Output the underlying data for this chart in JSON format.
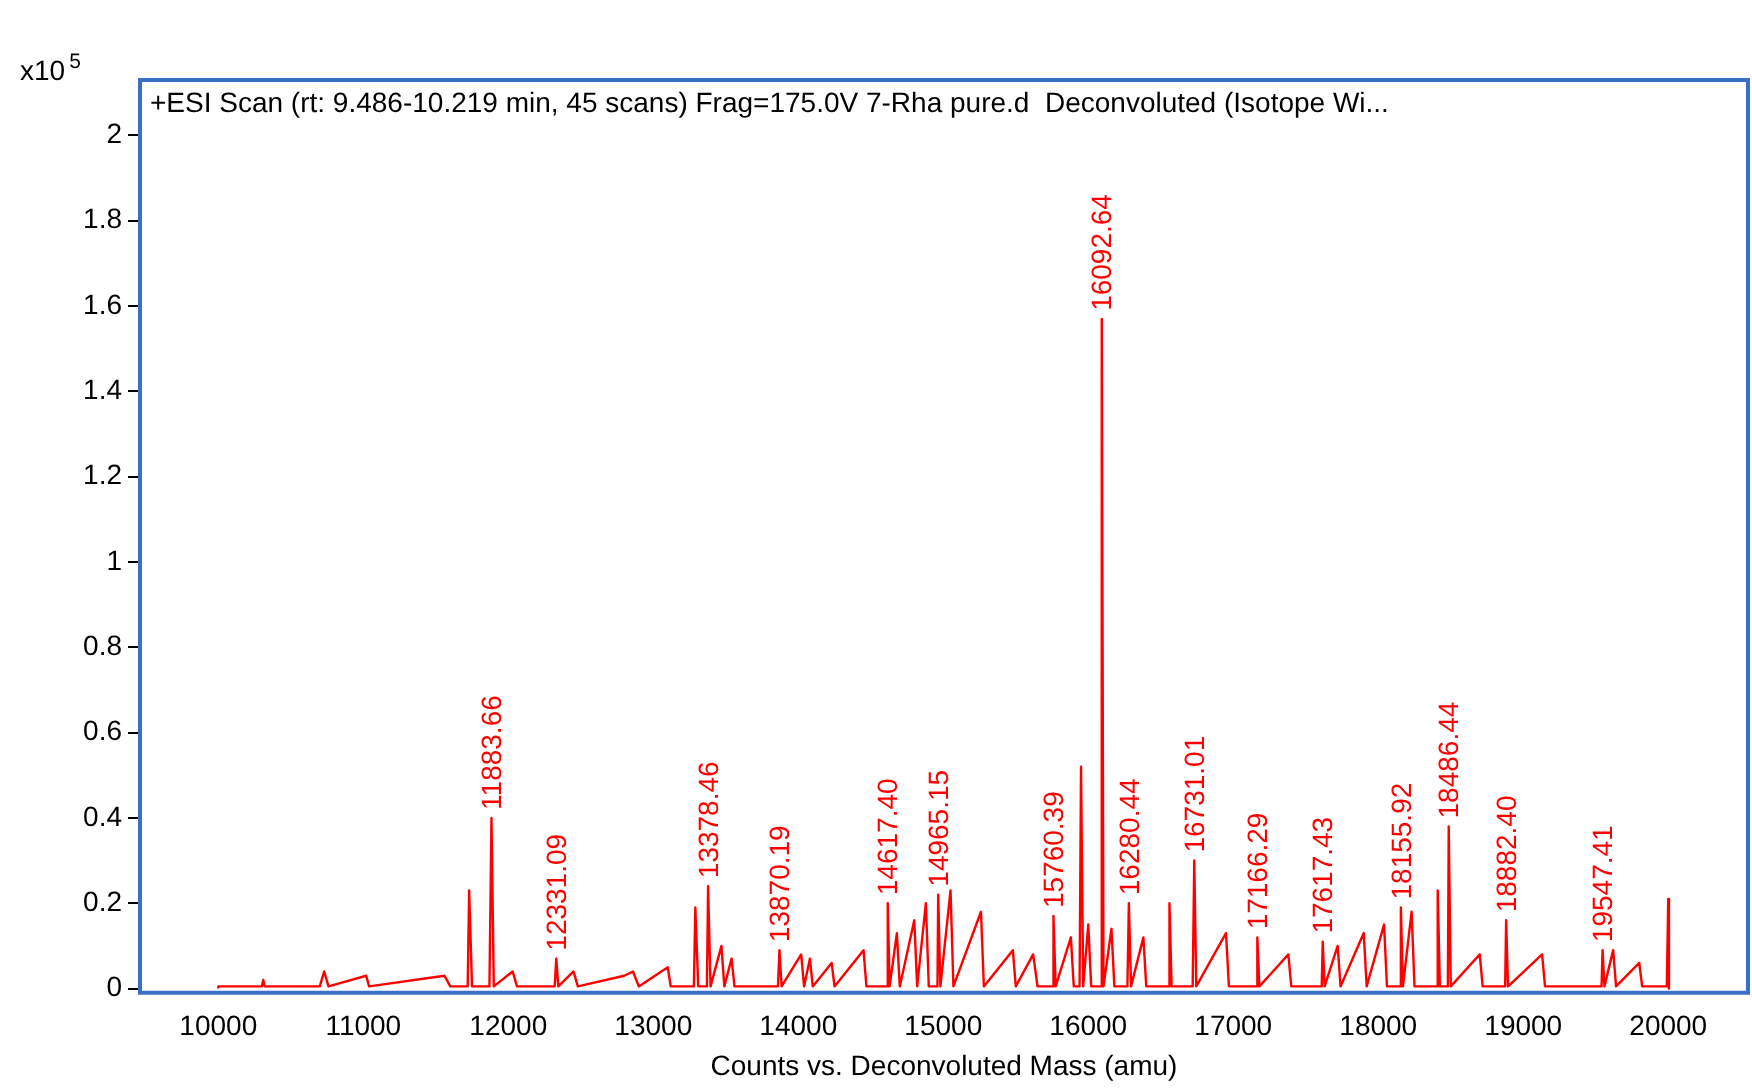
{
  "chart_data": {
    "type": "line",
    "title": "+ESI Scan (rt: 9.486-10.219 min, 45 scans) Frag=175.0V 7-Rha pure.d  Deconvoluted (Isotope Wi...",
    "xlabel": "Counts vs. Deconvoluted Mass (amu)",
    "ylabel": "x10$^{5}$",
    "xlim": [
      9460,
      20550
    ],
    "xticks": [
      10000,
      11000,
      12000,
      13000,
      14000,
      15000,
      16000,
      17000,
      18000,
      19000,
      20000
    ],
    "ylim": [
      -0.01,
      2.13
    ],
    "yticks": [
      0,
      0.2,
      0.4,
      0.6,
      0.8,
      1,
      1.2,
      1.4,
      1.6,
      1.8,
      2
    ],
    "grid": false,
    "legend": false,
    "marker": "none",
    "line_style": "solid",
    "series": [
      {
        "color": "#ff0000",
        "x": [
          10000,
          10000,
          10300,
          10310,
          10320,
          10700,
          10730,
          10760,
          11020,
          11040,
          11560,
          11600,
          11720,
          11730,
          11750,
          11870,
          11884,
          11900,
          12030,
          12060,
          12320,
          12331,
          12345,
          12450,
          12480,
          12800,
          12860,
          12900,
          13100,
          13120,
          13280,
          13290,
          13310,
          13370,
          13378,
          13395,
          13470,
          13490,
          13540,
          13560,
          13860,
          13870,
          13885,
          14020,
          14040,
          14080,
          14100,
          14230,
          14250,
          14450,
          14470,
          14610,
          14617,
          14630,
          14680,
          14700,
          14800,
          14820,
          14880,
          14900,
          14960,
          14965,
          14980,
          15050,
          15070,
          15260,
          15280,
          15480,
          15500,
          15620,
          15650,
          15750,
          15760,
          15775,
          15880,
          15900,
          15940,
          15950,
          15965,
          16000,
          16020,
          16085,
          16093,
          16105,
          16160,
          16180,
          16270,
          16280,
          16295,
          16380,
          16400,
          16550,
          16560,
          16575,
          16720,
          16731,
          16745,
          16950,
          16970,
          17160,
          17166,
          17180,
          17380,
          17400,
          17610,
          17617,
          17630,
          17720,
          17740,
          17900,
          17920,
          18040,
          18060,
          18150,
          18156,
          18170,
          18230,
          18250,
          18400,
          18410,
          18425,
          18480,
          18486,
          18500,
          18700,
          18720,
          18875,
          18882,
          18895,
          19130,
          19150,
          19540,
          19547,
          19560,
          19620,
          19640,
          19800,
          19820,
          19990,
          20000,
          20005
        ],
        "values": [
          0,
          0.005,
          0.005,
          0.02,
          0.005,
          0.005,
          0.04,
          0.005,
          0.03,
          0.005,
          0.03,
          0.005,
          0.005,
          0.23,
          0.005,
          0.005,
          0.4,
          0.005,
          0.04,
          0.005,
          0.005,
          0.07,
          0.005,
          0.04,
          0.005,
          0.03,
          0.04,
          0.005,
          0.05,
          0.005,
          0.005,
          0.19,
          0.005,
          0.005,
          0.24,
          0.005,
          0.1,
          0.005,
          0.07,
          0.005,
          0.005,
          0.09,
          0.005,
          0.08,
          0.005,
          0.07,
          0.005,
          0.06,
          0.005,
          0.09,
          0.005,
          0.005,
          0.2,
          0.005,
          0.13,
          0.005,
          0.16,
          0.005,
          0.2,
          0.005,
          0.005,
          0.22,
          0.005,
          0.23,
          0.005,
          0.18,
          0.005,
          0.09,
          0.005,
          0.08,
          0.005,
          0.005,
          0.17,
          0.005,
          0.12,
          0.005,
          0.005,
          0.52,
          0.005,
          0.15,
          0.005,
          0.005,
          1.57,
          0.005,
          0.14,
          0.005,
          0.005,
          0.2,
          0.005,
          0.12,
          0.005,
          0.005,
          0.2,
          0.005,
          0.005,
          0.3,
          0.005,
          0.13,
          0.005,
          0.005,
          0.12,
          0.005,
          0.08,
          0.005,
          0.005,
          0.11,
          0.005,
          0.1,
          0.005,
          0.13,
          0.005,
          0.15,
          0.005,
          0.005,
          0.19,
          0.005,
          0.18,
          0.005,
          0.005,
          0.23,
          0.005,
          0.005,
          0.38,
          0.005,
          0.08,
          0.005,
          0.005,
          0.16,
          0.005,
          0.08,
          0.005,
          0.005,
          0.09,
          0.005,
          0.09,
          0.005,
          0.06,
          0.005,
          0.005,
          0.21,
          0
        ]
      }
    ],
    "annotations": [
      {
        "text": "11883.66",
        "x": 11884,
        "y": 0.4
      },
      {
        "text": "12331.09",
        "x": 12331,
        "y": 0.07
      },
      {
        "text": "13378.46",
        "x": 13378,
        "y": 0.24
      },
      {
        "text": "13870.19",
        "x": 13870,
        "y": 0.09
      },
      {
        "text": "14617.40",
        "x": 14617,
        "y": 0.2
      },
      {
        "text": "14965.15",
        "x": 14965,
        "y": 0.22
      },
      {
        "text": "15760.39",
        "x": 15760,
        "y": 0.17
      },
      {
        "text": "16092.64",
        "x": 16093,
        "y": 1.57
      },
      {
        "text": "16280.44",
        "x": 16280,
        "y": 0.2
      },
      {
        "text": "16731.01",
        "x": 16731,
        "y": 0.3
      },
      {
        "text": "17166.29",
        "x": 17166,
        "y": 0.12
      },
      {
        "text": "17617.43",
        "x": 17617,
        "y": 0.11
      },
      {
        "text": "18155.92",
        "x": 18156,
        "y": 0.19
      },
      {
        "text": "18486.44",
        "x": 18486,
        "y": 0.38
      },
      {
        "text": "18882.40",
        "x": 18882,
        "y": 0.16
      },
      {
        "text": "19547.41",
        "x": 19547,
        "y": 0.09
      }
    ]
  }
}
